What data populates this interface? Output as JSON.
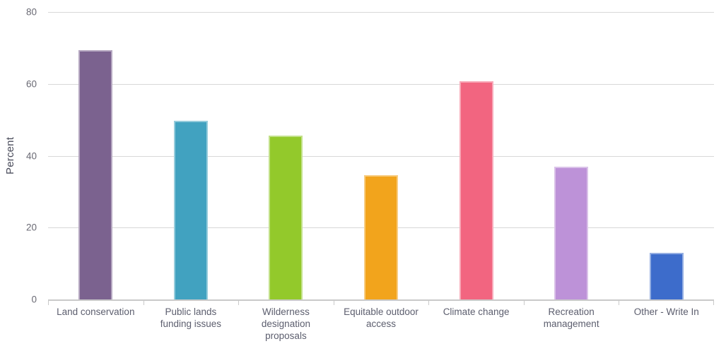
{
  "chart_data": {
    "type": "bar",
    "title": "",
    "xlabel": "",
    "ylabel": "Percent",
    "ylim": [
      0,
      80
    ],
    "yticks": [
      0,
      20,
      40,
      60,
      80
    ],
    "grid": true,
    "legend": false,
    "categories": [
      "Land conservation",
      "Public lands funding issues",
      "Wilderness designation proposals",
      "Equitable outdoor access",
      "Climate change",
      "Recreation management",
      "Other - Write In"
    ],
    "values": [
      69.4,
      49.7,
      45.6,
      34.6,
      60.8,
      36.9,
      13.0
    ],
    "colors": [
      "#7b628f",
      "#41a2c0",
      "#93c92b",
      "#f2a41c",
      "#f26580",
      "#bd92d8",
      "#3d6ccb"
    ]
  }
}
